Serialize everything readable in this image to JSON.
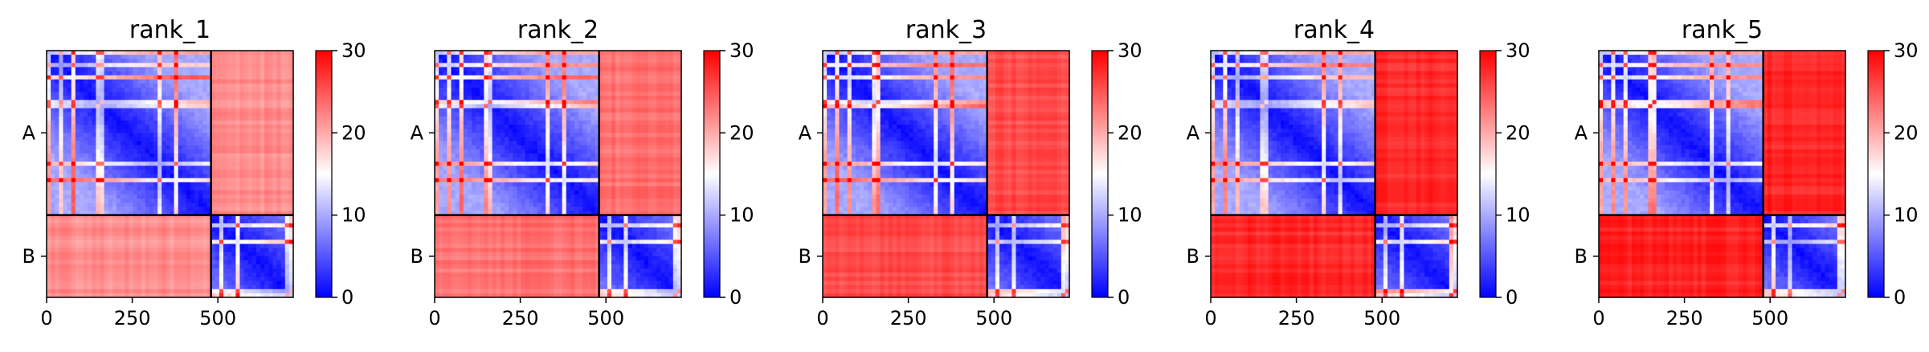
{
  "chart_data": [
    {
      "type": "heatmap",
      "title": "rank_1",
      "chains": [
        "A",
        "B"
      ],
      "xticks": [
        0,
        250,
        500
      ],
      "n": 720,
      "split": 480,
      "colorbar": {
        "ticks": [
          0,
          10,
          20,
          30
        ],
        "vmin": 0,
        "vmax": 30,
        "colors": [
          "#0000ff",
          "#ffffff",
          "#ff0000"
        ]
      },
      "offdiag_level": 0.72
    },
    {
      "type": "heatmap",
      "title": "rank_2",
      "chains": [
        "A",
        "B"
      ],
      "xticks": [
        0,
        250,
        500
      ],
      "n": 720,
      "split": 480,
      "colorbar": {
        "ticks": [
          0,
          10,
          20,
          30
        ],
        "vmin": 0,
        "vmax": 30,
        "colors": [
          "#0000ff",
          "#ffffff",
          "#ff0000"
        ]
      },
      "offdiag_level": 0.78
    },
    {
      "type": "heatmap",
      "title": "rank_3",
      "chains": [
        "A",
        "B"
      ],
      "xticks": [
        0,
        250,
        500
      ],
      "n": 720,
      "split": 480,
      "colorbar": {
        "ticks": [
          0,
          10,
          20,
          30
        ],
        "vmin": 0,
        "vmax": 30,
        "colors": [
          "#0000ff",
          "#ffffff",
          "#ff0000"
        ]
      },
      "offdiag_level": 0.85
    },
    {
      "type": "heatmap",
      "title": "rank_4",
      "chains": [
        "A",
        "B"
      ],
      "xticks": [
        0,
        250,
        500
      ],
      "n": 720,
      "split": 480,
      "colorbar": {
        "ticks": [
          0,
          10,
          20,
          30
        ],
        "vmin": 0,
        "vmax": 30,
        "colors": [
          "#0000ff",
          "#ffffff",
          "#ff0000"
        ]
      },
      "offdiag_level": 0.92
    },
    {
      "type": "heatmap",
      "title": "rank_5",
      "chains": [
        "A",
        "B"
      ],
      "xticks": [
        0,
        250,
        500
      ],
      "n": 720,
      "split": 480,
      "colorbar": {
        "ticks": [
          0,
          10,
          20,
          30
        ],
        "vmin": 0,
        "vmax": 30,
        "colors": [
          "#0000ff",
          "#ffffff",
          "#ff0000"
        ]
      },
      "offdiag_level": 0.93
    }
  ]
}
